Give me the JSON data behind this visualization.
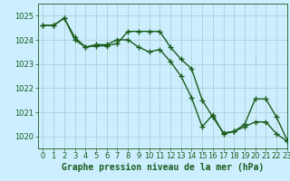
{
  "line1_x": [
    0,
    1,
    2,
    3,
    4,
    5,
    6,
    7,
    8,
    9,
    10,
    11,
    12,
    13,
    14,
    15,
    16,
    17,
    18,
    19,
    20,
    21,
    22,
    23
  ],
  "line1_y": [
    1024.6,
    1024.6,
    1024.9,
    1024.0,
    1023.7,
    1023.8,
    1023.8,
    1024.0,
    1024.0,
    1023.7,
    1023.5,
    1023.6,
    1023.1,
    1022.5,
    1021.6,
    1020.4,
    1020.9,
    1020.1,
    1020.2,
    1020.4,
    1020.6,
    1020.6,
    1020.1,
    1019.8
  ],
  "line2_x": [
    0,
    1,
    2,
    3,
    4,
    5,
    6,
    7,
    8,
    9,
    10,
    11,
    12,
    13,
    14,
    15,
    16,
    17,
    18,
    19,
    20,
    21,
    22,
    23
  ],
  "line2_y": [
    1024.6,
    1024.6,
    1024.9,
    1024.1,
    1023.7,
    1023.75,
    1023.75,
    1023.85,
    1024.35,
    1024.35,
    1024.35,
    1024.35,
    1023.7,
    1023.2,
    1022.8,
    1021.5,
    1020.8,
    1020.15,
    1020.2,
    1020.5,
    1021.55,
    1021.55,
    1020.8,
    1019.85
  ],
  "line_color": "#1a5c1a",
  "bg_color": "#cceeff",
  "grid_major_color": "#b0d0d0",
  "grid_minor_color": "#c8e8e8",
  "xlabel": "Graphe pression niveau de la mer (hPa)",
  "ylim": [
    1019.5,
    1025.5
  ],
  "xlim": [
    -0.5,
    23
  ],
  "yticks": [
    1020,
    1021,
    1022,
    1023,
    1024,
    1025
  ],
  "xticks": [
    0,
    1,
    2,
    3,
    4,
    5,
    6,
    7,
    8,
    9,
    10,
    11,
    12,
    13,
    14,
    15,
    16,
    17,
    18,
    19,
    20,
    21,
    22,
    23
  ],
  "marker": "+",
  "linewidth": 1.0,
  "markersize": 4,
  "markeredgewidth": 1.0,
  "xlabel_fontsize": 7,
  "tick_fontsize": 6
}
